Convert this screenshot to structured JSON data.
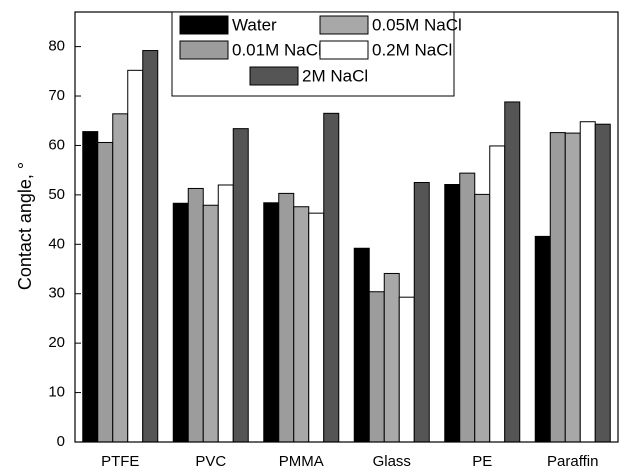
{
  "chart_data": {
    "type": "bar",
    "y_label": "Contact angle, °",
    "categories": [
      "PTFE",
      "PVC",
      "PMMA",
      "Glass",
      "PE",
      "Paraffin"
    ],
    "series": [
      {
        "name": "Water",
        "color": "#000000",
        "values": [
          62.8,
          48.3,
          48.4,
          39.2,
          52.1,
          41.6
        ]
      },
      {
        "name": "0.01M NaCl",
        "color": "#9c9c9c",
        "values": [
          60.6,
          51.3,
          50.3,
          30.4,
          54.4,
          62.6
        ]
      },
      {
        "name": "0.05M NaCl",
        "color": "#a8a8a8",
        "values": [
          66.4,
          47.9,
          47.6,
          34.1,
          50.1,
          62.5
        ]
      },
      {
        "name": "0.2M NaCl",
        "color": "#ffffff",
        "values": [
          75.2,
          52.0,
          46.3,
          29.3,
          59.9,
          64.8
        ]
      },
      {
        "name": "2M NaCl",
        "color": "#555555",
        "values": [
          79.2,
          63.4,
          66.5,
          52.5,
          68.8,
          64.3
        ]
      }
    ],
    "ylim": [
      0,
      87
    ],
    "yticks": [
      0,
      10,
      20,
      30,
      40,
      50,
      60,
      70,
      80
    ],
    "grid": false,
    "legend": "upper center"
  }
}
